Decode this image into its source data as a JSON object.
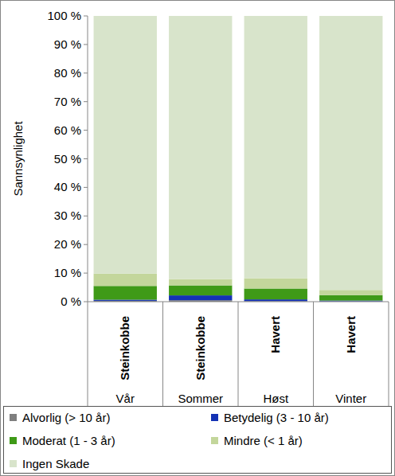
{
  "chart_data": {
    "type": "bar",
    "stacked": true,
    "y_label": "Sannsynlighet",
    "categories": [
      "Vår",
      "Sommer",
      "Høst",
      "Vinter"
    ],
    "category_groups": [
      "Steinkobbe",
      "Steinkobbe",
      "Havert",
      "Havert"
    ],
    "ylim": [
      0,
      100
    ],
    "yticks": [
      {
        "value": 0,
        "label": "0 %"
      },
      {
        "value": 10,
        "label": "10 %"
      },
      {
        "value": 20,
        "label": "20 %"
      },
      {
        "value": 30,
        "label": "30 %"
      },
      {
        "value": 40,
        "label": "40 %"
      },
      {
        "value": 50,
        "label": "50 %"
      },
      {
        "value": 60,
        "label": "60 %"
      },
      {
        "value": 70,
        "label": "70 %"
      },
      {
        "value": 80,
        "label": "80 %"
      },
      {
        "value": 90,
        "label": "90 %"
      },
      {
        "value": 100,
        "label": "100 %"
      }
    ],
    "legend": "bottom",
    "series": [
      {
        "name": "Alvorlig (> 10 år)",
        "color": "#7f7f7f",
        "values": [
          0.3,
          0.5,
          0.2,
          0.1
        ]
      },
      {
        "name": "Betydelig (3 - 10 år)",
        "color": "#1432b4",
        "values": [
          0.4,
          1.7,
          0.6,
          0.3
        ]
      },
      {
        "name": "Moderat (1 - 3 år)",
        "color": "#3f9a17",
        "values": [
          4.8,
          3.5,
          3.8,
          1.9
        ]
      },
      {
        "name": "Mindre (< 1 år)",
        "color": "#c3d69b",
        "values": [
          4.3,
          2.2,
          3.6,
          1.8
        ]
      },
      {
        "name": "Ingen Skade",
        "color": "#d8e4cb",
        "values": [
          90.2,
          92.1,
          91.8,
          95.9
        ]
      }
    ]
  }
}
